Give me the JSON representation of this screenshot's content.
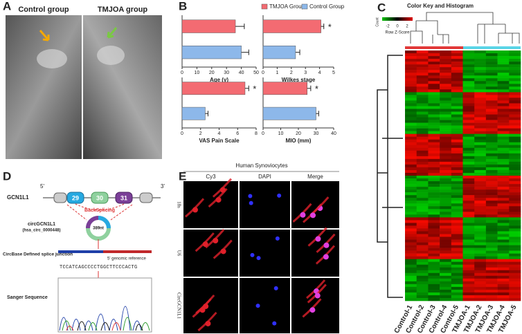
{
  "panels": {
    "a": "A",
    "b": "B",
    "c": "C",
    "d": "D",
    "e": "E"
  },
  "panel_a": {
    "labels": [
      "Control group",
      "TMJOA group"
    ]
  },
  "chart_data": [
    {
      "type": "bar",
      "orientation": "horizontal",
      "xlabel": "Age (y)",
      "xlim": [
        0,
        50
      ],
      "xticks": [
        0,
        10,
        20,
        30,
        40,
        50
      ],
      "legend": "top",
      "series": [
        {
          "name": "TMJOA Group",
          "color": "#f36b72",
          "values": [
            36
          ],
          "errors": [
            6
          ]
        },
        {
          "name": "Control Group",
          "color": "#8db8ea",
          "values": [
            40
          ],
          "errors": [
            5
          ]
        }
      ]
    },
    {
      "type": "bar",
      "orientation": "horizontal",
      "xlabel": "Wilkes stage",
      "xlim": [
        0,
        5
      ],
      "xticks": [
        0,
        1,
        2,
        3,
        4,
        5
      ],
      "series": [
        {
          "name": "TMJOA Group",
          "color": "#f36b72",
          "values": [
            4.1
          ],
          "errors": [
            0.2
          ],
          "significance": [
            "*"
          ]
        },
        {
          "name": "Control Group",
          "color": "#8db8ea",
          "values": [
            2.3
          ],
          "errors": [
            0.3
          ]
        }
      ]
    },
    {
      "type": "bar",
      "orientation": "horizontal",
      "xlabel": "VAS Pain Scale",
      "xlim": [
        0,
        8
      ],
      "xticks": [
        0,
        2,
        4,
        6,
        8
      ],
      "series": [
        {
          "name": "TMJOA Group",
          "color": "#f36b72",
          "values": [
            6.8
          ],
          "errors": [
            0.4
          ],
          "significance": [
            "*"
          ]
        },
        {
          "name": "Control Group",
          "color": "#8db8ea",
          "values": [
            2.5
          ],
          "errors": [
            0.3
          ]
        }
      ]
    },
    {
      "type": "bar",
      "orientation": "horizontal",
      "xlabel": "MIO (mm)",
      "xlim": [
        0,
        40
      ],
      "xticks": [
        0,
        10,
        20,
        30,
        40
      ],
      "series": [
        {
          "name": "TMJOA Group",
          "color": "#f36b72",
          "values": [
            25
          ],
          "errors": [
            2
          ],
          "significance": [
            "*"
          ]
        },
        {
          "name": "Control Group",
          "color": "#8db8ea",
          "values": [
            30
          ],
          "errors": [
            1.5
          ]
        }
      ]
    }
  ],
  "heatmap": {
    "key_title": "Color Key and Histogram",
    "count_label": "Count",
    "key_ticks": [
      "-2",
      "0",
      "2"
    ],
    "key_label": "Row Z-Score",
    "columns": [
      "Control-1",
      "Control-2",
      "Control-3",
      "Control-4",
      "Control-5",
      "TMJOA-1",
      "TMJOA-2",
      "TMJOA-3",
      "TMJOA-4",
      "TMJOA-5"
    ]
  },
  "panel_d": {
    "gene": "GCN1L1",
    "end5": "5'",
    "end3": "3'",
    "exons": [
      "29",
      "30",
      "31"
    ],
    "splicing": "BackSplicing",
    "circ_name": "circGCN1L1",
    "circ_id": "(hsa_circ_0000448)",
    "length": "389nt",
    "junction_label": "CircBase Defined splice junction",
    "reference": "5' genomic reference",
    "sequence": "TCCATCAGCCCCTGGCTTCCCACTG",
    "sanger_label": "Sanger Sequence"
  },
  "panel_e": {
    "title": "Human Synoviocytes",
    "columns": [
      "Cy3",
      "DAPI",
      "Merge"
    ],
    "rows": [
      "18s",
      "U6",
      "CircGCN1L1"
    ]
  }
}
